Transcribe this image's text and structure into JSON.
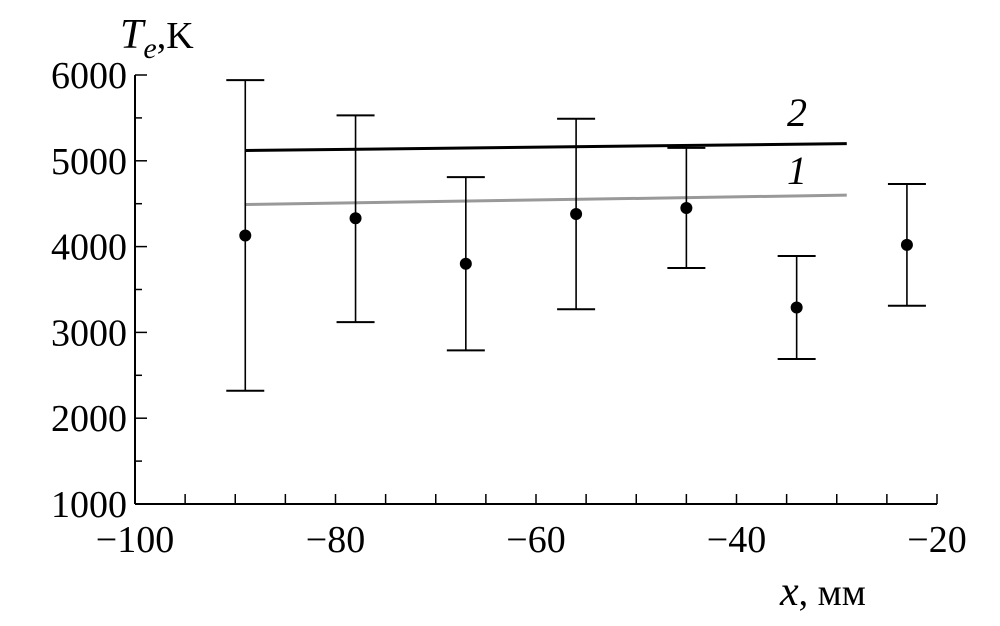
{
  "chart_data": {
    "type": "scatter",
    "ylabel_main": "T",
    "ylabel_sub": "e",
    "ylabel_unit": ",K",
    "xlabel_var": "x",
    "xlabel_unit": ", мм",
    "xlim": [
      -100,
      -20
    ],
    "ylim": [
      1000,
      6000
    ],
    "x_ticks": [
      -100,
      -80,
      -60,
      -40,
      -20
    ],
    "x_tick_labels": [
      "−100",
      "−80",
      "−60",
      "−40",
      "−20"
    ],
    "y_ticks": [
      1000,
      2000,
      3000,
      4000,
      5000,
      6000
    ],
    "y_tick_labels": [
      "1000",
      "2000",
      "3000",
      "4000",
      "5000",
      "6000"
    ],
    "x_minor_step": 5,
    "y_minor_step": 500,
    "grid": false,
    "points": [
      {
        "x": -89,
        "y": 4130,
        "low": 2320,
        "high": 5940
      },
      {
        "x": -78,
        "y": 4330,
        "low": 3120,
        "high": 5530
      },
      {
        "x": -67,
        "y": 3800,
        "low": 2790,
        "high": 4810
      },
      {
        "x": -56,
        "y": 4380,
        "low": 3270,
        "high": 5490
      },
      {
        "x": -45,
        "y": 4450,
        "low": 3750,
        "high": 5150
      },
      {
        "x": -34,
        "y": 3290,
        "low": 2690,
        "high": 3890
      },
      {
        "x": -23,
        "y": 4020,
        "low": 3310,
        "high": 4730
      }
    ],
    "lines": [
      {
        "label": "2",
        "color": "#000000",
        "x": [
          -89,
          -29
        ],
        "y": [
          5120,
          5200
        ]
      },
      {
        "label": "1",
        "color": "#999999",
        "x": [
          -89,
          -29
        ],
        "y": [
          4490,
          4600
        ]
      }
    ]
  }
}
